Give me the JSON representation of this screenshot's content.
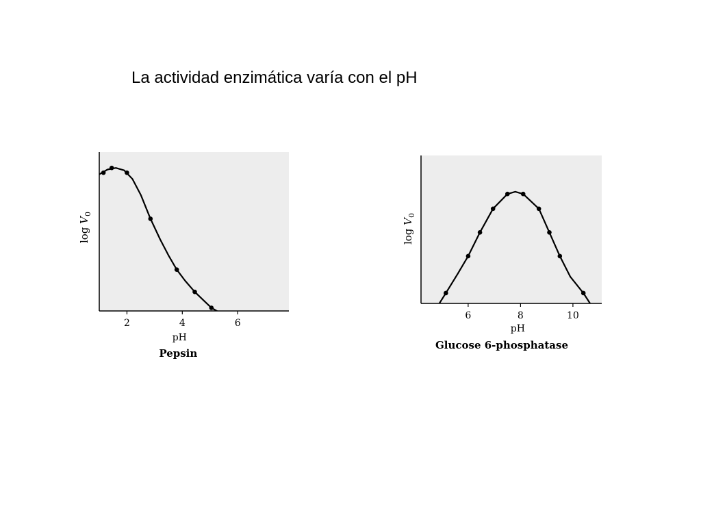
{
  "slide": {
    "title": "La actividad enzimática varía con el pH"
  },
  "chart_data": [
    {
      "type": "line",
      "title": "Pepsin",
      "xlabel": "pH",
      "ylabel": "log",
      "ylabel_var": "V",
      "ylabel_sub": "0",
      "xlim": [
        1,
        7.85
      ],
      "ylim": [
        0,
        1
      ],
      "xticks": [
        2,
        4,
        6
      ],
      "xtick_labels": [
        "2",
        "4",
        "6"
      ],
      "series": [
        {
          "points": [
            [
              1.15,
              0.87
            ],
            [
              1.45,
              0.9
            ],
            [
              2.0,
              0.87
            ],
            [
              2.85,
              0.58
            ],
            [
              3.8,
              0.26
            ],
            [
              4.45,
              0.12
            ],
            [
              5.05,
              0.02
            ]
          ],
          "curve": [
            [
              1.0,
              0.86
            ],
            [
              1.3,
              0.89
            ],
            [
              1.6,
              0.9
            ],
            [
              1.9,
              0.885
            ],
            [
              2.2,
              0.83
            ],
            [
              2.5,
              0.73
            ],
            [
              2.85,
              0.58
            ],
            [
              3.2,
              0.45
            ],
            [
              3.5,
              0.35
            ],
            [
              3.8,
              0.26
            ],
            [
              4.1,
              0.19
            ],
            [
              4.45,
              0.12
            ],
            [
              4.75,
              0.07
            ],
            [
              5.05,
              0.02
            ],
            [
              5.4,
              -0.015
            ],
            [
              5.75,
              -0.04
            ]
          ]
        }
      ],
      "grid": false,
      "background": "#ededed",
      "line_color": "#000000"
    },
    {
      "type": "line",
      "title": "Glucose 6-phosphatase",
      "xlabel": "pH",
      "ylabel": "log",
      "ylabel_var": "V",
      "ylabel_sub": "0",
      "xlim": [
        4.2,
        11.1
      ],
      "ylim": [
        0,
        1
      ],
      "xticks": [
        6,
        8,
        10
      ],
      "xtick_labels": [
        "6",
        "8",
        "10"
      ],
      "series": [
        {
          "points": [
            [
              5.15,
              0.07
            ],
            [
              6.0,
              0.32
            ],
            [
              6.45,
              0.48
            ],
            [
              6.95,
              0.64
            ],
            [
              7.5,
              0.74
            ],
            [
              8.1,
              0.74
            ],
            [
              8.7,
              0.64
            ],
            [
              9.1,
              0.48
            ],
            [
              9.5,
              0.32
            ],
            [
              10.4,
              0.07
            ]
          ],
          "curve": [
            [
              4.6,
              -0.06
            ],
            [
              4.9,
              0.0
            ],
            [
              5.15,
              0.07
            ],
            [
              5.6,
              0.2
            ],
            [
              6.0,
              0.32
            ],
            [
              6.45,
              0.48
            ],
            [
              6.95,
              0.64
            ],
            [
              7.5,
              0.74
            ],
            [
              7.8,
              0.755
            ],
            [
              8.1,
              0.74
            ],
            [
              8.7,
              0.64
            ],
            [
              9.1,
              0.48
            ],
            [
              9.5,
              0.32
            ],
            [
              9.9,
              0.18
            ],
            [
              10.4,
              0.07
            ],
            [
              10.8,
              -0.04
            ]
          ]
        }
      ],
      "grid": false,
      "background": "#ededed",
      "line_color": "#000000"
    }
  ]
}
